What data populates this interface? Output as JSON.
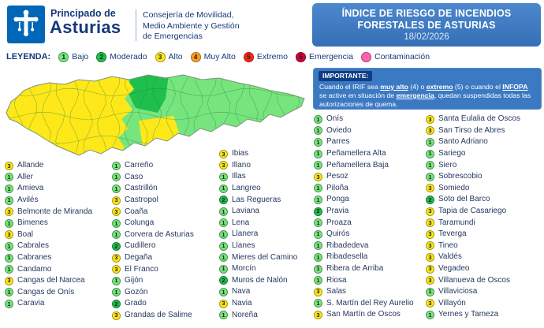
{
  "header": {
    "logo": {
      "org_line1": "Principado de",
      "org_line2": "Asturias"
    },
    "department_lines": [
      "Consejería de Movilidad,",
      "Medio Ambiente y Gestión",
      "de Emergencias"
    ],
    "banner": {
      "title_line1": "ÍNDICE DE RIESGO DE INCENDIOS",
      "title_line2": "FORESTALES DE ASTURIAS",
      "date": "18/02/2026",
      "bg_color": "#3c79c3"
    }
  },
  "legend": {
    "label": "LEYENDA:",
    "items": [
      {
        "num": "1",
        "label": "Bajo",
        "color": "#77e57e"
      },
      {
        "num": "2",
        "label": "Moderado",
        "color": "#1fbf4e"
      },
      {
        "num": "3",
        "label": "Alto",
        "color": "#ffe81a"
      },
      {
        "num": "4",
        "label": "Muy Alto",
        "color": "#ff9d1c"
      },
      {
        "num": "5",
        "label": "Extremo",
        "color": "#ff2418"
      },
      {
        "num": "5",
        "label": "Emergencia",
        "color": "#d1003f"
      },
      {
        "num": "",
        "label": "Contaminación",
        "color": "#ff63b0"
      }
    ]
  },
  "notice": {
    "label": "IMPORTANTE:",
    "segments": [
      {
        "text": "Cuando el IRIF sea "
      },
      {
        "text": "muy alto",
        "emphasis": true
      },
      {
        "text": " (4) o "
      },
      {
        "text": "extremo",
        "emphasis": true
      },
      {
        "text": " (5) o cuando el "
      },
      {
        "text": "INFOPA",
        "emphasis": true
      },
      {
        "text": " se active en situación de "
      },
      {
        "text": "emergencia",
        "emphasis": true
      },
      {
        "text": ", quedan suspendidas todas las autorizaciones de quema."
      }
    ]
  },
  "risk_levels": {
    "1": "#77e57e",
    "2": "#1fbf4e",
    "3": "#ffe81a"
  },
  "municipalities": {
    "columns": [
      [
        {
          "level": "3",
          "name": "Allande"
        },
        {
          "level": "1",
          "name": "Aller"
        },
        {
          "level": "1",
          "name": "Amieva"
        },
        {
          "level": "1",
          "name": "Avilés"
        },
        {
          "level": "3",
          "name": "Belmonte de Miranda"
        },
        {
          "level": "1",
          "name": "Bimenes"
        },
        {
          "level": "3",
          "name": "Boal"
        },
        {
          "level": "1",
          "name": "Cabrales"
        },
        {
          "level": "1",
          "name": "Cabranes"
        },
        {
          "level": "1",
          "name": "Candamo"
        },
        {
          "level": "3",
          "name": "Cangas del Narcea"
        },
        {
          "level": "1",
          "name": "Cangas de Onís"
        },
        {
          "level": "1",
          "name": "Caravia"
        }
      ],
      [
        {
          "level": "1",
          "name": "Carreño"
        },
        {
          "level": "1",
          "name": "Caso"
        },
        {
          "level": "1",
          "name": "Castrillón"
        },
        {
          "level": "3",
          "name": "Castropol"
        },
        {
          "level": "3",
          "name": "Coaña"
        },
        {
          "level": "1",
          "name": "Colunga"
        },
        {
          "level": "1",
          "name": "Corvera de Asturias"
        },
        {
          "level": "2",
          "name": "Cudillero"
        },
        {
          "level": "3",
          "name": "Degaña"
        },
        {
          "level": "3",
          "name": "El Franco"
        },
        {
          "level": "1",
          "name": "Gijón"
        },
        {
          "level": "1",
          "name": "Gozón"
        },
        {
          "level": "2",
          "name": "Grado"
        },
        {
          "level": "3",
          "name": "Grandas de Salime"
        }
      ],
      [
        {
          "level": "3",
          "name": "Ibias"
        },
        {
          "level": "3",
          "name": "Illano"
        },
        {
          "level": "1",
          "name": "Illas"
        },
        {
          "level": "1",
          "name": "Langreo"
        },
        {
          "level": "2",
          "name": "Las Regueras"
        },
        {
          "level": "1",
          "name": "Laviana"
        },
        {
          "level": "1",
          "name": "Lena"
        },
        {
          "level": "1",
          "name": "Llanera"
        },
        {
          "level": "1",
          "name": "Llanes"
        },
        {
          "level": "1",
          "name": "Mieres del Camino"
        },
        {
          "level": "1",
          "name": "Morcín"
        },
        {
          "level": "2",
          "name": "Muros de Nalón"
        },
        {
          "level": "1",
          "name": "Nava"
        },
        {
          "level": "3",
          "name": "Navia"
        },
        {
          "level": "1",
          "name": "Noreña"
        }
      ],
      [
        {
          "level": "1",
          "name": "Onís"
        },
        {
          "level": "1",
          "name": "Oviedo"
        },
        {
          "level": "1",
          "name": "Parres"
        },
        {
          "level": "1",
          "name": "Peñamellera Alta"
        },
        {
          "level": "1",
          "name": "Peñamellera Baja"
        },
        {
          "level": "3",
          "name": "Pesoz"
        },
        {
          "level": "1",
          "name": "Piloña"
        },
        {
          "level": "1",
          "name": "Ponga"
        },
        {
          "level": "2",
          "name": "Pravia"
        },
        {
          "level": "1",
          "name": "Proaza"
        },
        {
          "level": "1",
          "name": "Quirós"
        },
        {
          "level": "1",
          "name": "Ribadedeva"
        },
        {
          "level": "1",
          "name": "Ribadesella"
        },
        {
          "level": "1",
          "name": "Ribera de Arriba"
        },
        {
          "level": "1",
          "name": "Riosa"
        },
        {
          "level": "3",
          "name": "Salas"
        },
        {
          "level": "1",
          "name": "S. Martín del Rey Aurelio"
        },
        {
          "level": "3",
          "name": "San Martín de Oscos"
        }
      ],
      [
        {
          "level": "3",
          "name": "Santa Eulalia de Oscos"
        },
        {
          "level": "3",
          "name": "San Tirso de Abres"
        },
        {
          "level": "1",
          "name": "Santo Adriano"
        },
        {
          "level": "1",
          "name": "Sariego"
        },
        {
          "level": "1",
          "name": "Siero"
        },
        {
          "level": "1",
          "name": "Sobrescobio"
        },
        {
          "level": "3",
          "name": "Somiedo"
        },
        {
          "level": "2",
          "name": "Soto del Barco"
        },
        {
          "level": "3",
          "name": "Tapia de Casariego"
        },
        {
          "level": "3",
          "name": "Taramundi"
        },
        {
          "level": "3",
          "name": "Teverga"
        },
        {
          "level": "3",
          "name": "Tineo"
        },
        {
          "level": "3",
          "name": "Valdés"
        },
        {
          "level": "3",
          "name": "Vegadeo"
        },
        {
          "level": "3",
          "name": "Villanueva de Oscos"
        },
        {
          "level": "1",
          "name": "Villaviciosa"
        },
        {
          "level": "3",
          "name": "Villayón"
        },
        {
          "level": "1",
          "name": "Yernes y Tameza"
        }
      ]
    ]
  }
}
